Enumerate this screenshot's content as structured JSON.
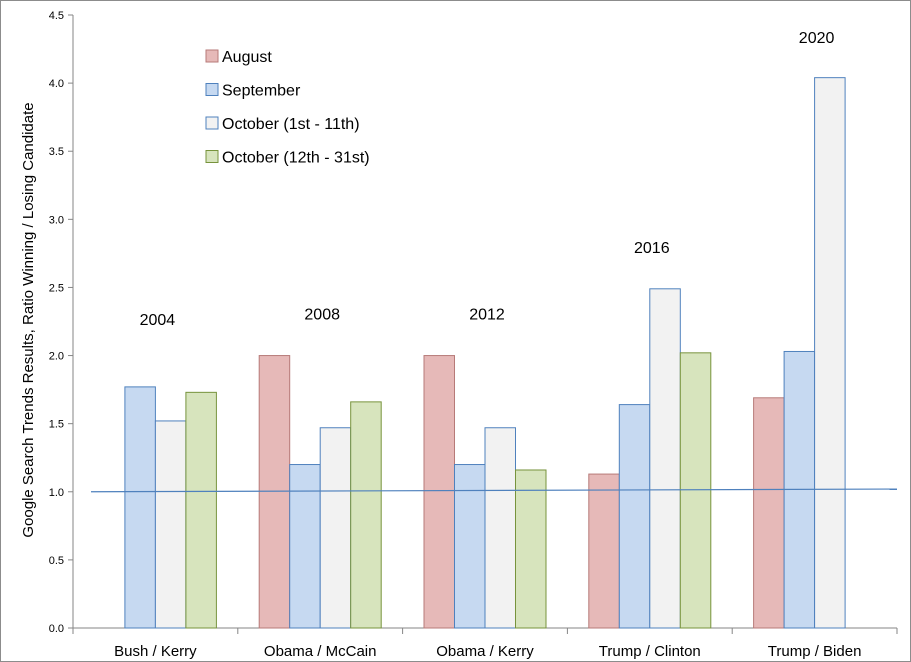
{
  "chart_data": {
    "type": "bar",
    "title": "",
    "xlabel": "",
    "ylabel": "Google Search Trends Results, Ratio Winning  / Losing Candidate",
    "ylim": [
      0,
      4.5
    ],
    "y_ticks": [
      "0.0",
      "0.5",
      "1.0",
      "1.5",
      "2.0",
      "2.5",
      "3.0",
      "3.5",
      "4.0",
      "4.5"
    ],
    "grid": false,
    "legend_position": "top-left",
    "categories": [
      "Bush / Kerry",
      "Obama / McCain",
      "Obama / Kerry",
      "Trump / Clinton",
      "Trump / Biden"
    ],
    "category_years": [
      "2004",
      "2008",
      "2012",
      "2016",
      "2020"
    ],
    "series": [
      {
        "name": "August",
        "color": "#e6b9b8",
        "edge": "#b77a78",
        "values": [
          null,
          2.0,
          2.0,
          1.13,
          1.69
        ]
      },
      {
        "name": "September",
        "color": "#c6d9f1",
        "edge": "#4f81bd",
        "values": [
          1.77,
          1.2,
          1.2,
          1.64,
          2.03
        ]
      },
      {
        "name": "October (1st - 11th)",
        "color": "#f2f2f2",
        "edge": "#4f81bd",
        "values": [
          1.52,
          1.47,
          1.47,
          2.49,
          4.04
        ]
      },
      {
        "name": "October (12th - 31st)",
        "color": "#d7e4bd",
        "edge": "#77933c",
        "values": [
          1.73,
          1.66,
          1.16,
          2.02,
          null
        ]
      }
    ],
    "reference_line": {
      "color": "#4f81bd",
      "y_start": 1.0,
      "y_end": 1.02
    }
  }
}
